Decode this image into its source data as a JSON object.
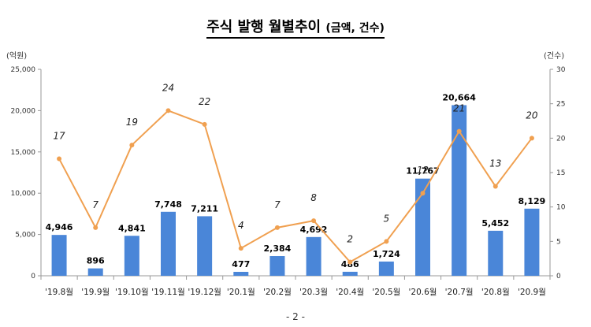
{
  "title": "주식 발행 월별추이",
  "subtitle": "(금액, 건수)",
  "left_unit": "(억원)",
  "right_unit": "(건수)",
  "page_number": "- 2 -",
  "colors": {
    "bar": "#4a86d8",
    "line": "#f0a050",
    "axis": "#999999"
  },
  "chart_data": {
    "type": "bar",
    "categories": [
      "'19.8월",
      "'19.9월",
      "'19.10월",
      "'19.11월",
      "'19.12월",
      "'20.1월",
      "'20.2월",
      "'20.3월",
      "'20.4월",
      "'20.5월",
      "'20.6월",
      "'20.7월",
      "'20.8월",
      "'20.9월"
    ],
    "series": [
      {
        "type": "bar",
        "axis": "left",
        "values": [
          4946,
          896,
          4841,
          7748,
          7211,
          477,
          2384,
          4692,
          486,
          1724,
          11767,
          20664,
          5452,
          8129
        ],
        "labels": [
          "4,946",
          "896",
          "4,841",
          "7,748",
          "7,211",
          "477",
          "2,384",
          "4,692",
          "486",
          "1,724",
          "11,767",
          "20,664",
          "5,452",
          "8,129"
        ]
      },
      {
        "type": "line",
        "axis": "right",
        "values": [
          17,
          7,
          19,
          24,
          22,
          4,
          7,
          8,
          2,
          5,
          12,
          21,
          13,
          20
        ]
      }
    ],
    "left_axis": {
      "ylim": [
        0,
        25000
      ],
      "ticks": [
        0,
        5000,
        10000,
        15000,
        20000,
        25000
      ],
      "tick_labels": [
        "0",
        "5,000",
        "10,000",
        "15,000",
        "20,000",
        "25,000"
      ]
    },
    "right_axis": {
      "ylim": [
        0,
        30
      ],
      "ticks": [
        0,
        5,
        10,
        15,
        20,
        25,
        30
      ],
      "tick_labels": [
        "0",
        "5",
        "10",
        "15",
        "20",
        "25",
        "30"
      ]
    },
    "grid": false
  }
}
